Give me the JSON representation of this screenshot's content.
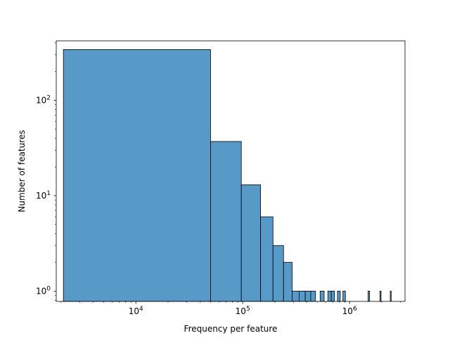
{
  "chart_data": {
    "type": "bar",
    "xlabel": "Frequency per feature",
    "ylabel": "Number of features",
    "xscale": "log",
    "yscale": "log",
    "xlim": [
      1800,
      3300000
    ],
    "ylim": [
      0.78,
      420
    ],
    "grid": false,
    "bar_color": "#5799c7",
    "edge_color": "#000000",
    "x_tick_labels": [
      {
        "value": 10000,
        "base": "10",
        "exp": "4"
      },
      {
        "value": 100000,
        "base": "10",
        "exp": "5"
      },
      {
        "value": 1000000,
        "base": "10",
        "exp": "6"
      }
    ],
    "y_tick_labels": [
      {
        "value": 1,
        "base": "10",
        "exp": "0"
      },
      {
        "value": 10,
        "base": "10",
        "exp": "1"
      },
      {
        "value": 100,
        "base": "10",
        "exp": "2"
      }
    ],
    "bins": [
      {
        "x0": 2100,
        "x1": 50000,
        "count": 340
      },
      {
        "x0": 50000,
        "x1": 97000,
        "count": 37
      },
      {
        "x0": 97000,
        "x1": 147000,
        "count": 13
      },
      {
        "x0": 147000,
        "x1": 192000,
        "count": 6
      },
      {
        "x0": 192000,
        "x1": 241000,
        "count": 3
      },
      {
        "x0": 241000,
        "x1": 290000,
        "count": 2
      },
      {
        "x0": 290000,
        "x1": 337000,
        "count": 1
      },
      {
        "x0": 337000,
        "x1": 385000,
        "count": 1
      },
      {
        "x0": 385000,
        "x1": 433000,
        "count": 1
      },
      {
        "x0": 433000,
        "x1": 480000,
        "count": 1
      },
      {
        "x0": 530000,
        "x1": 578000,
        "count": 1
      },
      {
        "x0": 626000,
        "x1": 674000,
        "count": 1
      },
      {
        "x0": 674000,
        "x1": 722000,
        "count": 1
      },
      {
        "x0": 770000,
        "x1": 818000,
        "count": 1
      },
      {
        "x0": 866000,
        "x1": 914000,
        "count": 1
      },
      {
        "x0": 1490000,
        "x1": 1538000,
        "count": 1
      },
      {
        "x0": 1922000,
        "x1": 1970000,
        "count": 1
      },
      {
        "x0": 2402000,
        "x1": 2450000,
        "count": 1
      }
    ]
  }
}
